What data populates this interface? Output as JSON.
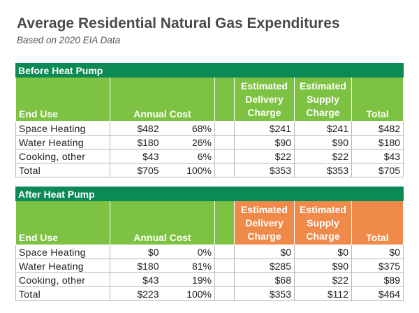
{
  "title": "Average Residential Natural Gas Expenditures",
  "subtitle": "Based on 2020 EIA Data",
  "headers": {
    "end_use": "End Use",
    "annual_cost": "Annual Cost",
    "delivery": [
      "Estimated",
      "Delivery",
      "Charge"
    ],
    "supply": [
      "Estimated",
      "Supply",
      "Charge"
    ],
    "total": "Total"
  },
  "colors": {
    "band_green": "#0b8a55",
    "header_green": "#7dc242",
    "accent_orange": "#f08a4b"
  },
  "before": {
    "section": "Before Heat Pump",
    "rows": [
      {
        "label": "Space Heating",
        "cost": "$482",
        "pct": "68%",
        "delivery": "$241",
        "supply": "$241",
        "total": "$482"
      },
      {
        "label": "Water Heating",
        "cost": "$180",
        "pct": "26%",
        "delivery": "$90",
        "supply": "$90",
        "total": "$180"
      },
      {
        "label": "Cooking, other",
        "cost": "$43",
        "pct": "6%",
        "delivery": "$22",
        "supply": "$22",
        "total": "$43"
      },
      {
        "label": "Total",
        "cost": "$705",
        "pct": "100%",
        "delivery": "$353",
        "supply": "$353",
        "total": "$705"
      }
    ]
  },
  "after": {
    "section": "After Heat Pump",
    "rows": [
      {
        "label": "Space Heating",
        "cost": "$0",
        "pct": "0%",
        "delivery": "$0",
        "supply": "$0",
        "total": "$0"
      },
      {
        "label": "Water Heating",
        "cost": "$180",
        "pct": "81%",
        "delivery": "$285",
        "supply": "$90",
        "total": "$375"
      },
      {
        "label": "Cooking, other",
        "cost": "$43",
        "pct": "19%",
        "delivery": "$68",
        "supply": "$22",
        "total": "$89"
      },
      {
        "label": "Total",
        "cost": "$223",
        "pct": "100%",
        "delivery": "$353",
        "supply": "$112",
        "total": "$464"
      }
    ]
  }
}
